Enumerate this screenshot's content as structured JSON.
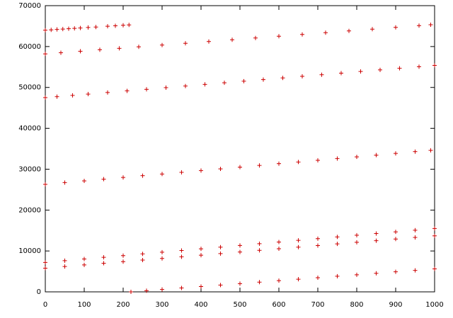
{
  "chart_data": {
    "type": "scatter",
    "color": "#cc0000",
    "xlim": [
      0,
      1000
    ],
    "ylim": [
      0,
      70000
    ],
    "xticks": [
      0,
      100,
      200,
      300,
      400,
      500,
      600,
      700,
      800,
      900,
      1000
    ],
    "yticks": [
      0,
      10000,
      20000,
      30000,
      40000,
      50000,
      60000,
      70000
    ],
    "x": [
      0,
      15,
      30,
      45,
      60,
      75,
      90,
      110,
      130,
      160,
      180,
      200,
      215,
      0,
      40,
      90,
      140,
      190,
      240,
      300,
      360,
      420,
      480,
      540,
      600,
      660,
      720,
      780,
      840,
      900,
      960,
      990,
      0,
      30,
      70,
      110,
      160,
      210,
      260,
      310,
      360,
      410,
      460,
      510,
      560,
      610,
      660,
      710,
      760,
      810,
      860,
      910,
      960,
      1000,
      0,
      50,
      100,
      150,
      200,
      250,
      300,
      350,
      400,
      450,
      500,
      550,
      600,
      650,
      700,
      750,
      800,
      850,
      900,
      950,
      990,
      0,
      50,
      100,
      150,
      200,
      250,
      300,
      350,
      400,
      450,
      500,
      550,
      600,
      650,
      700,
      750,
      800,
      850,
      900,
      950,
      1000,
      0,
      50,
      100,
      150,
      200,
      250,
      300,
      350,
      400,
      450,
      500,
      550,
      600,
      650,
      700,
      750,
      800,
      850,
      900,
      950,
      1000,
      220,
      260,
      300,
      350,
      400,
      450,
      500,
      550,
      600,
      650,
      700,
      750,
      800,
      850,
      900,
      950,
      1000
    ],
    "values": [
      64000,
      64090,
      64180,
      64270,
      64360,
      64450,
      64540,
      64660,
      64780,
      64960,
      65080,
      65200,
      65290,
      58200,
      58490,
      58850,
      59210,
      59570,
      59930,
      60360,
      60790,
      61220,
      61660,
      62090,
      62520,
      62950,
      63380,
      63820,
      64250,
      64680,
      65110,
      65330,
      47500,
      47740,
      48050,
      48370,
      48760,
      49160,
      49550,
      49950,
      50340,
      50740,
      51130,
      51530,
      51920,
      52320,
      52710,
      53110,
      53500,
      53900,
      54290,
      54690,
      55080,
      55400,
      26300,
      26720,
      27140,
      27560,
      27980,
      28400,
      28820,
      29240,
      29660,
      30080,
      30500,
      30920,
      31340,
      31760,
      32180,
      32600,
      33020,
      33440,
      33860,
      34280,
      34620,
      7200,
      7620,
      8030,
      8450,
      8860,
      9280,
      9690,
      10110,
      10520,
      10940,
      11350,
      11770,
      12180,
      12600,
      13010,
      13430,
      13840,
      14260,
      14670,
      15090,
      15500,
      5800,
      6200,
      6590,
      6990,
      7380,
      7780,
      8170,
      8570,
      8960,
      9360,
      9750,
      10150,
      10540,
      10940,
      11330,
      11730,
      12120,
      12520,
      12910,
      13310,
      13700,
      0,
      290,
      580,
      940,
      1300,
      1660,
      2020,
      2380,
      2740,
      3100,
      3460,
      3820,
      4180,
      4540,
      4900,
      5260,
      5620
    ]
  }
}
